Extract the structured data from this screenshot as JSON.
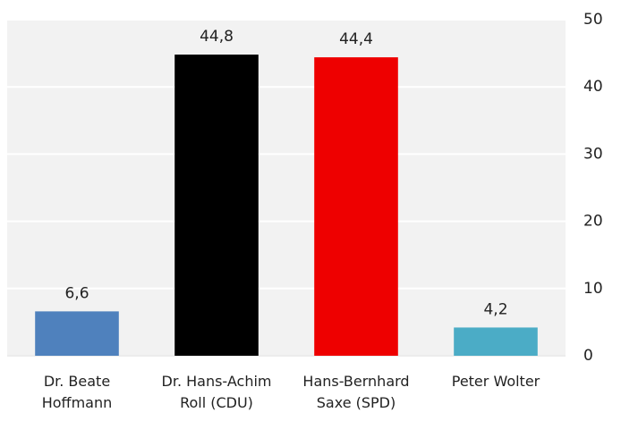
{
  "chart_data": {
    "type": "bar",
    "categories": [
      "Dr. Beate Hoffmann",
      "Dr. Hans-Achim Roll (CDU)",
      "Hans-Bernhard Saxe (SPD)",
      "Peter Wolter"
    ],
    "values": [
      6.6,
      44.8,
      44.4,
      4.2
    ],
    "value_labels": [
      "6,6",
      "44,8",
      "44,4",
      "4,2"
    ],
    "colors": [
      "#4f81bd",
      "#000000",
      "#ee0000",
      "#4bacc6"
    ],
    "ylim": [
      0,
      50
    ],
    "yticks": [
      0,
      10,
      20,
      30,
      40,
      50
    ],
    "grid": true,
    "y_axis_side": "right"
  }
}
